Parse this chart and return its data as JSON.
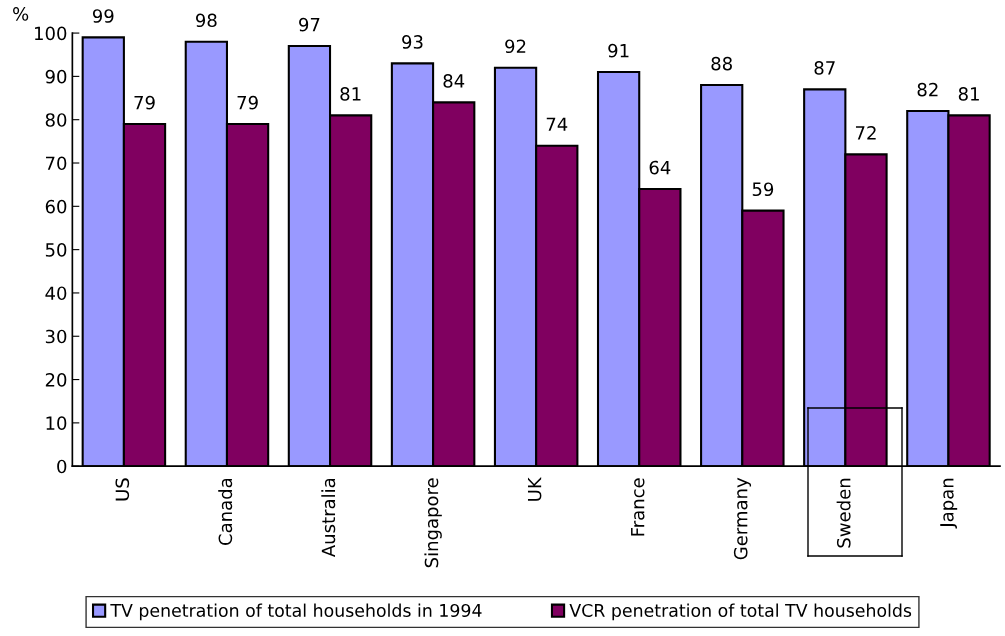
{
  "chart_data": {
    "type": "bar",
    "ylabel": "%",
    "categories": [
      "US",
      "Canada",
      "Australia",
      "Singapore",
      "UK",
      "France",
      "Germany",
      "Sweden",
      "Japan"
    ],
    "series": [
      {
        "name": "TV penetration of total households in 1994",
        "color": "#9999ff",
        "values": [
          99,
          98,
          97,
          93,
          92,
          91,
          88,
          87,
          82
        ]
      },
      {
        "name": "VCR penetration of total TV households",
        "color": "#800060",
        "values": [
          79,
          79,
          81,
          84,
          74,
          64,
          59,
          72,
          81
        ]
      }
    ],
    "ylim": [
      0,
      100
    ],
    "yticks": [
      0,
      10,
      20,
      30,
      40,
      50,
      60,
      70,
      80,
      90,
      100
    ],
    "data_labels": true,
    "legend": "bottom"
  }
}
